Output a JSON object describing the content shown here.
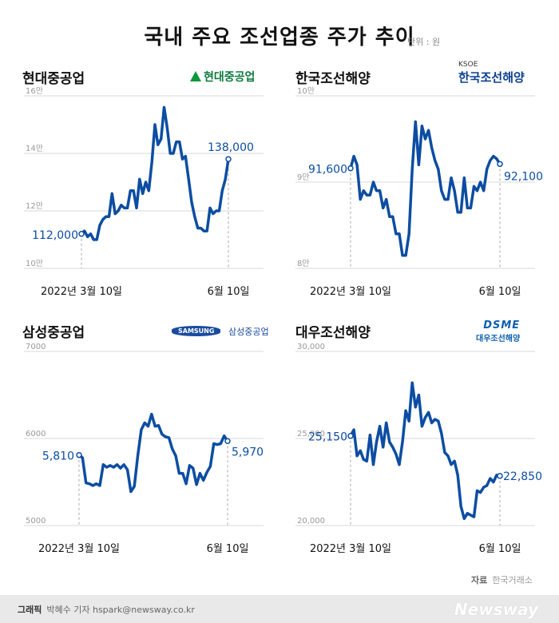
{
  "title": "국내 주요 조선업종 주가 추이",
  "unit": "단위 : 원",
  "source_label": "자료",
  "source": "한국거래소",
  "credit_label": "그래픽",
  "credit": "박혜수 기자  hspark@newsway.co.kr",
  "brand": "Newsway",
  "colors": {
    "line": "#0c4da2",
    "grid": "#d9d9d9",
    "dash": "#aaaaaa"
  },
  "logos": {
    "hyundai": "현대중공업",
    "ksoe_small": "KSOE",
    "ksoe": "한국조선해양",
    "samsung_badge": "SAMSUNG",
    "samsung": "삼성중공업",
    "dsme_small": "DSME",
    "dsme": "대우조선해양"
  },
  "chart_data": [
    {
      "type": "line",
      "title": "현대중공업",
      "x_start_label": "2022년 3월 10일",
      "x_end_label": "6월 10일",
      "ylim": [
        100000,
        160000
      ],
      "y_ticks": [
        100000,
        120000,
        140000,
        160000
      ],
      "y_tick_labels": [
        "10만",
        "12만",
        "14만",
        "16만"
      ],
      "start_value": 112000,
      "end_value": 138000,
      "start_label": "112,000",
      "end_label": "138,000",
      "values": [
        112000,
        113000,
        111000,
        112000,
        110000,
        110000,
        115000,
        117000,
        118000,
        118000,
        126000,
        119000,
        120000,
        122000,
        121000,
        121000,
        127000,
        127000,
        121000,
        131000,
        126000,
        130000,
        127000,
        137000,
        150000,
        143000,
        145000,
        156000,
        149000,
        140000,
        140000,
        144000,
        144000,
        138000,
        139000,
        131000,
        123000,
        118000,
        114000,
        114000,
        113000,
        113000,
        121000,
        119000,
        120000,
        120000,
        127000,
        131000,
        138000
      ]
    },
    {
      "type": "line",
      "title": "한국조선해양",
      "x_start_label": "2022년 3월 10일",
      "x_end_label": "6월 10일",
      "ylim": [
        80000,
        100000
      ],
      "y_ticks": [
        80000,
        90000,
        100000
      ],
      "y_tick_labels": [
        "8만",
        "9만",
        "10만"
      ],
      "start_value": 91600,
      "end_value": 92100,
      "start_label": "91,600",
      "end_label": "92,100",
      "values": [
        91600,
        93000,
        92000,
        88000,
        89000,
        88500,
        88500,
        90000,
        89000,
        89000,
        87000,
        88000,
        86000,
        86000,
        84000,
        84000,
        81500,
        81500,
        84000,
        91500,
        97000,
        92000,
        96500,
        95000,
        96000,
        94000,
        92500,
        91500,
        89000,
        88000,
        88000,
        90500,
        89000,
        86500,
        86500,
        90500,
        87000,
        87000,
        89500,
        89000,
        90000,
        89000,
        91500,
        92500,
        93000,
        92700,
        92100
      ]
    },
    {
      "type": "line",
      "title": "삼성중공업",
      "x_start_label": "2022년 3월 10일",
      "x_end_label": "6월 10일",
      "ylim": [
        5000,
        7000
      ],
      "y_ticks": [
        5000,
        6000,
        7000
      ],
      "y_tick_labels": [
        "5000",
        "6000",
        "7000"
      ],
      "start_value": 5810,
      "end_value": 5970,
      "start_label": "5,810",
      "end_label": "5,970",
      "values": [
        5810,
        5780,
        5490,
        5480,
        5460,
        5480,
        5460,
        5700,
        5670,
        5690,
        5670,
        5700,
        5660,
        5700,
        5640,
        5390,
        5450,
        5800,
        6100,
        6180,
        6140,
        6280,
        6140,
        6150,
        6050,
        6020,
        6010,
        5880,
        5800,
        5600,
        5600,
        5480,
        5690,
        5660,
        5470,
        5600,
        5520,
        5610,
        5680,
        5940,
        5930,
        5940,
        6030,
        5970
      ]
    },
    {
      "type": "line",
      "title": "대우조선해양",
      "x_start_label": "2022년 3월 10일",
      "x_end_label": "6월 10일",
      "ylim": [
        20000,
        30000
      ],
      "y_ticks": [
        20000,
        25000,
        30000
      ],
      "y_tick_labels": [
        "20,000",
        "25,000",
        "30,000"
      ],
      "start_value": 25150,
      "end_value": 22850,
      "start_label": "25,150",
      "end_label": "22,850",
      "values": [
        25150,
        25500,
        24000,
        24300,
        23800,
        23700,
        25200,
        23500,
        24800,
        25700,
        24500,
        25900,
        24800,
        24500,
        24100,
        23500,
        24800,
        26600,
        26000,
        28200,
        26800,
        27500,
        25700,
        26200,
        26500,
        25900,
        26100,
        26000,
        25300,
        24200,
        24000,
        23500,
        23700,
        22900,
        21100,
        20400,
        20700,
        20600,
        20500,
        22000,
        21900,
        22200,
        22300,
        22700,
        22500,
        22900,
        22850
      ]
    }
  ]
}
